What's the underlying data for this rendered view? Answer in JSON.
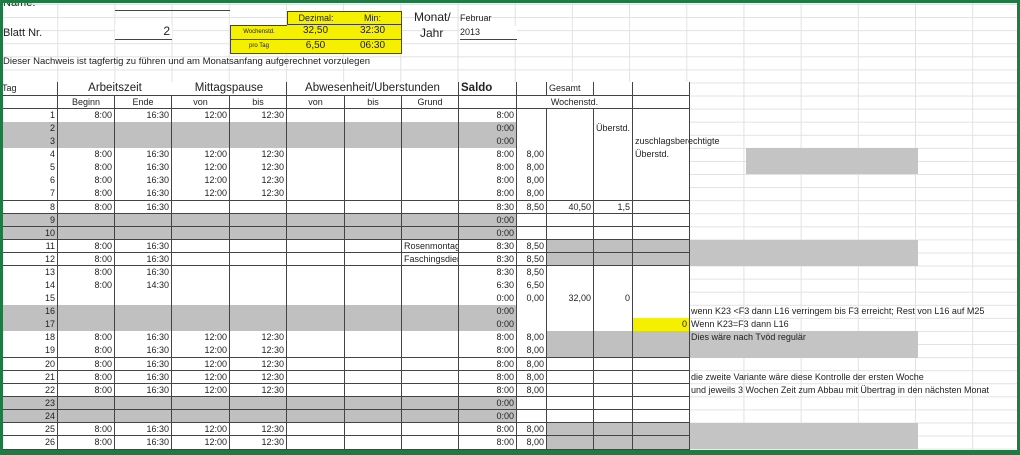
{
  "header": {
    "name_label": "Name:",
    "sheet_label": "Blatt Nr.",
    "sheet_number": "2",
    "dezimal_label": "Dezimal:",
    "min_label": "Min:",
    "weekly_label": "Wochenstd.",
    "weekly_decimal": "32,50",
    "weekly_min": "32:30",
    "daily_label": "pro Tag",
    "daily_decimal": "6,50",
    "daily_min": "06:30",
    "month_label": "Monat/",
    "year_label": "Jahr",
    "month": "Februar",
    "year": "2013",
    "instruction": "Dieser Nachweis ist tagfertig zu führen und am Monatsanfang aufgerechnet vorzulegen"
  },
  "table": {
    "col_tag": "Tag",
    "col_arbeitszeit": "Arbeitszeit",
    "col_mittagspause": "Mittagspause",
    "col_abwesenheit": "Abwesenheit/Überstunden",
    "col_saldo": "Saldo",
    "col_gesamt": "Gesamt",
    "col_wochenstd": "Wochenstd.",
    "sub": [
      "Beginn",
      "Ende",
      "von",
      "bis",
      "von",
      "bis",
      "Grund"
    ],
    "rows": [
      [
        "1",
        "8:00",
        "16:30",
        "12:00",
        "12:30",
        "",
        "",
        "",
        "8:00",
        "",
        "",
        "",
        ""
      ],
      [
        "2",
        "",
        "",
        "",
        "",
        "",
        "",
        "",
        "0:00",
        "",
        "",
        "Überstd.",
        ""
      ],
      [
        "3",
        "",
        "",
        "",
        "",
        "",
        "",
        "",
        "0:00",
        "",
        "",
        "",
        "zuschlagsberechtigte"
      ],
      [
        "4",
        "8:00",
        "16:30",
        "12:00",
        "12:30",
        "",
        "",
        "",
        "8:00",
        "8,00",
        "",
        "",
        "Überstd."
      ],
      [
        "5",
        "8:00",
        "16:30",
        "12:00",
        "12:30",
        "",
        "",
        "",
        "8:00",
        "8,00",
        "",
        "",
        ""
      ],
      [
        "6",
        "8:00",
        "16:30",
        "12:00",
        "12:30",
        "",
        "",
        "",
        "8:00",
        "8,00",
        "",
        "",
        ""
      ],
      [
        "7",
        "8:00",
        "16:30",
        "12:00",
        "12:30",
        "",
        "",
        "",
        "8:00",
        "8,00",
        "",
        "",
        ""
      ],
      [
        "8",
        "8:00",
        "16:30",
        "",
        "",
        "",
        "",
        "",
        "8:30",
        "8,50",
        "40,50",
        "1,5",
        ""
      ],
      [
        "9",
        "",
        "",
        "",
        "",
        "",
        "",
        "",
        "0:00",
        "",
        "",
        "",
        ""
      ],
      [
        "10",
        "",
        "",
        "",
        "",
        "",
        "",
        "",
        "0:00",
        "",
        "",
        "",
        ""
      ],
      [
        "11",
        "8:00",
        "16:30",
        "",
        "",
        "",
        "",
        "Rosenmontag",
        "8:30",
        "8,50",
        "",
        "",
        ""
      ],
      [
        "12",
        "8:00",
        "16:30",
        "",
        "",
        "",
        "",
        "Faschingsdienstag",
        "8:30",
        "8,50",
        "",
        "",
        ""
      ],
      [
        "13",
        "8:00",
        "16:30",
        "",
        "",
        "",
        "",
        "",
        "8:30",
        "8,50",
        "",
        "",
        ""
      ],
      [
        "14",
        "8:00",
        "14:30",
        "",
        "",
        "",
        "",
        "",
        "6:30",
        "6,50",
        "",
        "",
        ""
      ],
      [
        "15",
        "",
        "",
        "",
        "",
        "",
        "",
        "",
        "0:00",
        "0,00",
        "32,00",
        "0",
        ""
      ],
      [
        "16",
        "",
        "",
        "",
        "",
        "",
        "",
        "",
        "0:00",
        "",
        "",
        "",
        ""
      ],
      [
        "17",
        "",
        "",
        "",
        "",
        "",
        "",
        "",
        "0:00",
        "",
        "",
        "",
        "0"
      ],
      [
        "18",
        "8:00",
        "16:30",
        "12:00",
        "12:30",
        "",
        "",
        "",
        "8:00",
        "8,00",
        "",
        "",
        ""
      ],
      [
        "19",
        "8:00",
        "16:30",
        "12:00",
        "12:30",
        "",
        "",
        "",
        "8:00",
        "8,00",
        "",
        "",
        ""
      ],
      [
        "20",
        "8:00",
        "16:30",
        "12:00",
        "12:30",
        "",
        "",
        "",
        "8:00",
        "8,00",
        "",
        "",
        ""
      ],
      [
        "21",
        "8:00",
        "16:30",
        "12:00",
        "12:30",
        "",
        "",
        "",
        "8:00",
        "8,00",
        "",
        "",
        ""
      ],
      [
        "22",
        "8:00",
        "16:30",
        "12:00",
        "12:30",
        "",
        "",
        "",
        "8:00",
        "8,00",
        "",
        "",
        ""
      ],
      [
        "23",
        "",
        "",
        "",
        "",
        "",
        "",
        "",
        "0:00",
        "",
        "",
        "",
        ""
      ],
      [
        "24",
        "",
        "",
        "",
        "",
        "",
        "",
        "",
        "0:00",
        "",
        "",
        "",
        ""
      ],
      [
        "25",
        "8:00",
        "16:30",
        "12:00",
        "12:30",
        "",
        "",
        "",
        "8:00",
        "8,00",
        "",
        "",
        ""
      ],
      [
        "26",
        "8:00",
        "16:30",
        "12:00",
        "12:30",
        "",
        "",
        "",
        "8:00",
        "8,00",
        "",
        "",
        ""
      ]
    ],
    "weekend_rows": [
      2,
      3,
      9,
      10,
      16,
      17,
      23,
      24
    ],
    "holiday_block_rows": [
      11,
      12,
      18,
      19,
      25,
      26
    ],
    "highlight_color": "#f5f000",
    "shade_color": "#c0c0c0"
  },
  "notes": [
    "wenn K23 <F3 dann L16 verringem bis F3 erreicht; Rest von L16 auf M25",
    "Wenn K23=F3 dann L16",
    "Dies wäre nach Tvöd regulär",
    "die zweite Variante wäre diese Kontrolle der ersten Woche",
    "und jeweils 3 Wochen Zeit zum Abbau mit Übertrag in den nächsten Monat"
  ]
}
